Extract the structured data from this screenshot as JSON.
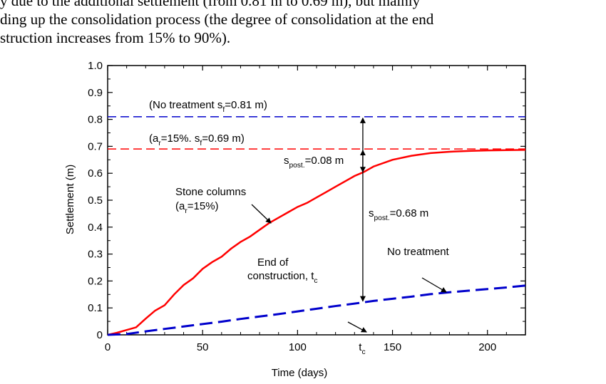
{
  "text": {
    "line1": "y due to the additional settlement (from 0.81 m to 0.69 m), but mainly",
    "line2": "ding up the consolidation process (the degree of consolidation at the end",
    "line3": "struction increases from 15% to 90%)."
  },
  "chart_data": {
    "type": "line",
    "xlabel": "Time (days)",
    "ylabel": "Settlement (m)",
    "xlim": [
      0,
      220
    ],
    "ylim": [
      0,
      1.0
    ],
    "x_ticks": [
      "0",
      "50",
      "100",
      "150",
      "200"
    ],
    "y_ticks": [
      "0",
      "0.1",
      "0.2",
      "0.3",
      "0.4",
      "0.5",
      "0.6",
      "0.7",
      "0.8",
      "0.9",
      "1.0"
    ],
    "tc_tick": {
      "main": "t",
      "sub": "c",
      "x": 134
    },
    "colors": {
      "stone": "#ff0000",
      "notreat": "#0000cc",
      "ref_blue": "#0000cc",
      "ref_red": "#ff0000"
    },
    "series": [
      {
        "style": "solid-red",
        "x": [
          0,
          5,
          10,
          15,
          20,
          25,
          30,
          35,
          40,
          45,
          50,
          55,
          60,
          65,
          70,
          75,
          80,
          85,
          90,
          95,
          100,
          105,
          110,
          115,
          120,
          125,
          130,
          135,
          140,
          150,
          160,
          170,
          180,
          190,
          200,
          210,
          220
        ],
        "y": [
          0,
          0.008,
          0.018,
          0.028,
          0.06,
          0.09,
          0.11,
          0.15,
          0.185,
          0.21,
          0.245,
          0.27,
          0.29,
          0.32,
          0.345,
          0.365,
          0.39,
          0.415,
          0.435,
          0.455,
          0.475,
          0.49,
          0.51,
          0.53,
          0.55,
          0.57,
          0.59,
          0.605,
          0.625,
          0.65,
          0.665,
          0.675,
          0.68,
          0.683,
          0.685,
          0.686,
          0.687
        ]
      },
      {
        "style": "dashed-blue",
        "x": [
          0,
          10,
          20,
          30,
          40,
          50,
          60,
          70,
          80,
          90,
          100,
          110,
          120,
          130,
          140,
          150,
          160,
          170,
          180,
          190,
          200,
          210,
          220
        ],
        "y": [
          0,
          0.003,
          0.013,
          0.022,
          0.031,
          0.04,
          0.049,
          0.059,
          0.068,
          0.077,
          0.087,
          0.097,
          0.107,
          0.116,
          0.126,
          0.134,
          0.142,
          0.151,
          0.158,
          0.164,
          0.17,
          0.176,
          0.183
        ]
      }
    ],
    "reference_lines": [
      {
        "y": 0.81,
        "color": "blue",
        "label": "(No treatment s",
        "sub": "f",
        "tail": "=0.81 m)"
      },
      {
        "y": 0.69,
        "color": "red",
        "label": "(a",
        "sub": "r",
        "tail": "=15%. s",
        "sub2": "f",
        "tail2": "=0.69 m)"
      }
    ],
    "annotations": {
      "stone_label_1": "Stone columns",
      "stone_label_2_a": "(a",
      "stone_label_2_sub": "r",
      "stone_label_2_tail": "=15%)",
      "spost_small_main": "s",
      "spost_small_sub": "post.",
      "spost_small_tail": "=0.08 m",
      "spost_large_main": "s",
      "spost_large_sub": "post.",
      "spost_large_tail": "=0.68 m",
      "no_treatment": "No treatment",
      "end_construction_1": "End of",
      "end_construction_2": "construction, t",
      "end_construction_sub": "c",
      "spost_small_values": [
        0.69,
        0.6
      ],
      "spost_large_values": [
        0.81,
        0.12
      ]
    }
  }
}
